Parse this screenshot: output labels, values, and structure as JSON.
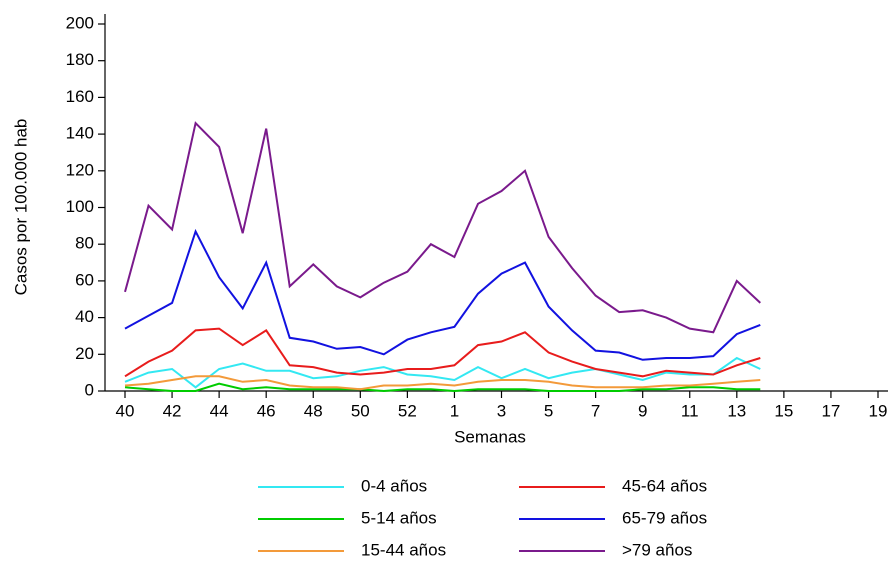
{
  "chart_data": {
    "type": "line",
    "y_label": "Casos por 100.000 hab",
    "x_label": "Semanas",
    "categories": [
      "40",
      null,
      "42",
      null,
      "44",
      null,
      "46",
      null,
      "48",
      null,
      "50",
      null,
      "52",
      null,
      "1",
      null,
      "3",
      null,
      "5",
      null,
      "7",
      null,
      "9",
      null,
      "11",
      null,
      "13",
      null,
      "15",
      null,
      "17",
      null,
      "19"
    ],
    "ylim": [
      0,
      200
    ],
    "yticks": [
      0,
      20,
      40,
      60,
      80,
      100,
      120,
      140,
      160,
      180,
      200
    ],
    "series": [
      {
        "name": "0-4 años",
        "color": "#33e8f2",
        "values": [
          5,
          10,
          12,
          2,
          12,
          15,
          11,
          11,
          7,
          8,
          11,
          13,
          9,
          8,
          6,
          13,
          7,
          12,
          7,
          10,
          12,
          9,
          6,
          10,
          9,
          9,
          18,
          12,
          null,
          null,
          null,
          null,
          null
        ]
      },
      {
        "name": "5-14 años",
        "color": "#00cc00",
        "values": [
          2,
          1,
          0,
          0,
          4,
          1,
          2,
          1,
          1,
          1,
          1,
          0,
          1,
          1,
          0,
          1,
          1,
          1,
          0,
          0,
          0,
          0,
          1,
          1,
          2,
          2,
          1,
          1,
          null,
          null,
          null,
          null,
          null
        ]
      },
      {
        "name": "15-44 años",
        "color": "#f39a3a",
        "values": [
          3,
          4,
          6,
          8,
          8,
          5,
          6,
          3,
          2,
          2,
          1,
          3,
          3,
          4,
          3,
          5,
          6,
          6,
          5,
          3,
          2,
          2,
          2,
          3,
          3,
          4,
          5,
          6,
          null,
          null,
          null,
          null,
          null
        ]
      },
      {
        "name": "45-64 años",
        "color": "#e81c1c",
        "values": [
          8,
          16,
          22,
          33,
          34,
          25,
          33,
          14,
          13,
          10,
          9,
          10,
          12,
          12,
          14,
          25,
          27,
          32,
          21,
          16,
          12,
          10,
          8,
          11,
          10,
          9,
          14,
          18,
          null,
          null,
          null,
          null,
          null
        ]
      },
      {
        "name": "65-79 años",
        "color": "#1212e0",
        "values": [
          34,
          41,
          48,
          87,
          62,
          45,
          70,
          29,
          27,
          23,
          24,
          20,
          28,
          32,
          35,
          53,
          64,
          70,
          46,
          33,
          22,
          21,
          17,
          18,
          18,
          19,
          31,
          36,
          null,
          null,
          null,
          null,
          null
        ]
      },
      {
        "name": ">79 años",
        "color": "#7a1a8c",
        "values": [
          54,
          101,
          88,
          146,
          133,
          86,
          143,
          57,
          69,
          57,
          51,
          59,
          65,
          80,
          73,
          102,
          109,
          120,
          84,
          67,
          52,
          43,
          44,
          40,
          34,
          32,
          60,
          48,
          null,
          null,
          null,
          null,
          null
        ]
      }
    ]
  }
}
